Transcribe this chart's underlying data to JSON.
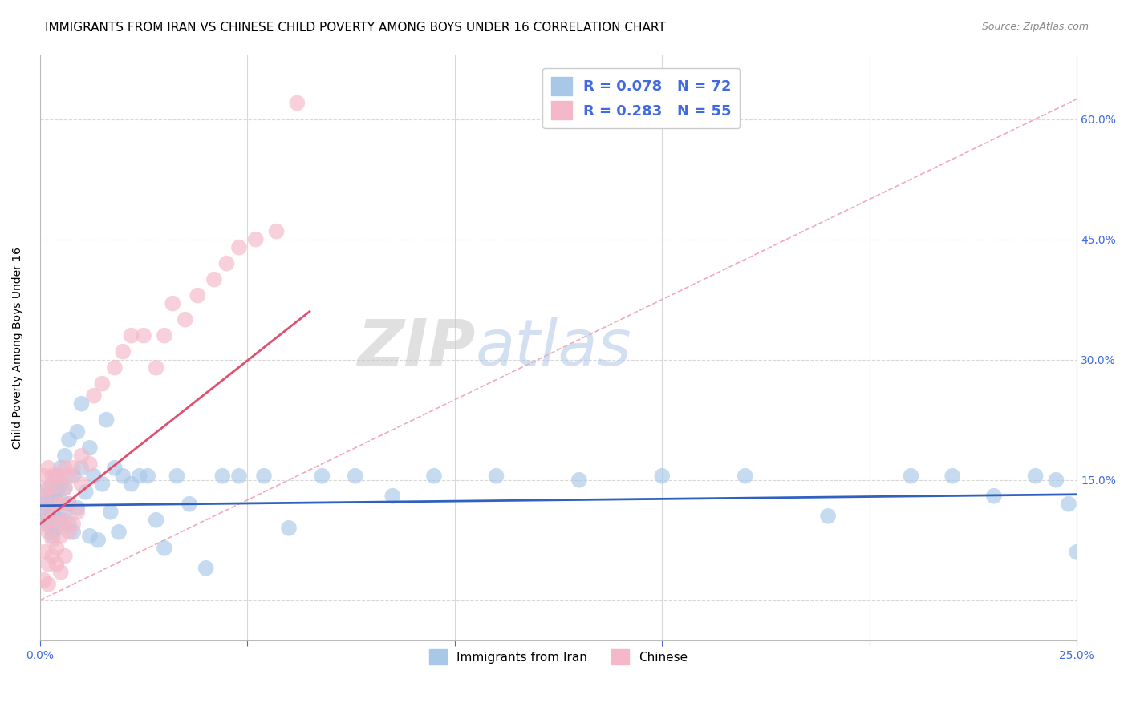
{
  "title": "IMMIGRANTS FROM IRAN VS CHINESE CHILD POVERTY AMONG BOYS UNDER 16 CORRELATION CHART",
  "source": "Source: ZipAtlas.com",
  "ylabel": "Child Poverty Among Boys Under 16",
  "xlim": [
    0.0,
    0.25
  ],
  "ylim": [
    -0.05,
    0.68
  ],
  "yticks_right": [
    0.0,
    0.15,
    0.3,
    0.45,
    0.6
  ],
  "yticklabels_right": [
    "",
    "15.0%",
    "30.0%",
    "45.0%",
    "60.0%"
  ],
  "legend_label1": "Immigrants from Iran",
  "legend_label2": "Chinese",
  "watermark": "ZIPatlas",
  "color_blue": "#a8c8e8",
  "color_pink": "#f4b8c8",
  "color_blue_text": "#4169E1",
  "color_pink_line": "#e05070",
  "color_blue_line": "#3060c0",
  "diag_color": "#f0a0b0",
  "grid_color": "#d8d8d8",
  "title_fontsize": 11,
  "axis_label_fontsize": 10,
  "tick_fontsize": 10,
  "iran_x": [
    0.001,
    0.001,
    0.001,
    0.002,
    0.002,
    0.002,
    0.002,
    0.002,
    0.003,
    0.003,
    0.003,
    0.003,
    0.003,
    0.004,
    0.004,
    0.004,
    0.004,
    0.005,
    0.005,
    0.005,
    0.005,
    0.006,
    0.006,
    0.006,
    0.007,
    0.007,
    0.007,
    0.008,
    0.008,
    0.009,
    0.009,
    0.01,
    0.01,
    0.011,
    0.012,
    0.012,
    0.013,
    0.014,
    0.015,
    0.016,
    0.017,
    0.018,
    0.019,
    0.02,
    0.022,
    0.024,
    0.026,
    0.028,
    0.03,
    0.033,
    0.036,
    0.04,
    0.044,
    0.048,
    0.054,
    0.06,
    0.068,
    0.076,
    0.085,
    0.095,
    0.11,
    0.13,
    0.15,
    0.17,
    0.19,
    0.21,
    0.22,
    0.23,
    0.24,
    0.245,
    0.248,
    0.25
  ],
  "iran_y": [
    0.12,
    0.1,
    0.13,
    0.115,
    0.125,
    0.095,
    0.105,
    0.14,
    0.085,
    0.11,
    0.13,
    0.145,
    0.08,
    0.12,
    0.135,
    0.155,
    0.09,
    0.125,
    0.1,
    0.145,
    0.165,
    0.11,
    0.14,
    0.18,
    0.12,
    0.095,
    0.2,
    0.085,
    0.155,
    0.115,
    0.21,
    0.165,
    0.245,
    0.135,
    0.19,
    0.08,
    0.155,
    0.075,
    0.145,
    0.225,
    0.11,
    0.165,
    0.085,
    0.155,
    0.145,
    0.155,
    0.155,
    0.1,
    0.065,
    0.155,
    0.12,
    0.04,
    0.155,
    0.155,
    0.155,
    0.09,
    0.155,
    0.155,
    0.13,
    0.155,
    0.155,
    0.15,
    0.155,
    0.155,
    0.105,
    0.155,
    0.155,
    0.13,
    0.155,
    0.15,
    0.12,
    0.06
  ],
  "chinese_x": [
    0.001,
    0.001,
    0.001,
    0.001,
    0.001,
    0.002,
    0.002,
    0.002,
    0.002,
    0.002,
    0.002,
    0.003,
    0.003,
    0.003,
    0.003,
    0.003,
    0.004,
    0.004,
    0.004,
    0.004,
    0.005,
    0.005,
    0.005,
    0.005,
    0.005,
    0.006,
    0.006,
    0.006,
    0.006,
    0.007,
    0.007,
    0.007,
    0.008,
    0.008,
    0.009,
    0.01,
    0.01,
    0.012,
    0.013,
    0.015,
    0.018,
    0.02,
    0.022,
    0.025,
    0.028,
    0.03,
    0.032,
    0.035,
    0.038,
    0.042,
    0.045,
    0.048,
    0.052,
    0.057,
    0.062
  ],
  "chinese_y": [
    0.13,
    0.095,
    0.06,
    0.025,
    0.155,
    0.11,
    0.085,
    0.045,
    0.02,
    0.14,
    0.165,
    0.075,
    0.055,
    0.1,
    0.14,
    0.155,
    0.065,
    0.045,
    0.12,
    0.155,
    0.035,
    0.08,
    0.12,
    0.155,
    0.095,
    0.055,
    0.1,
    0.14,
    0.165,
    0.085,
    0.12,
    0.155,
    0.095,
    0.165,
    0.11,
    0.145,
    0.18,
    0.17,
    0.255,
    0.27,
    0.29,
    0.31,
    0.33,
    0.33,
    0.29,
    0.33,
    0.37,
    0.35,
    0.38,
    0.4,
    0.42,
    0.44,
    0.45,
    0.46,
    0.62
  ],
  "iran_trend_x": [
    0.0,
    0.25
  ],
  "iran_trend_y": [
    0.118,
    0.132
  ],
  "chinese_trend_x": [
    0.0,
    0.065
  ],
  "chinese_trend_y": [
    0.095,
    0.36
  ],
  "diag_line_x": [
    0.0,
    0.25
  ],
  "diag_line_y": [
    0.0,
    0.625
  ]
}
